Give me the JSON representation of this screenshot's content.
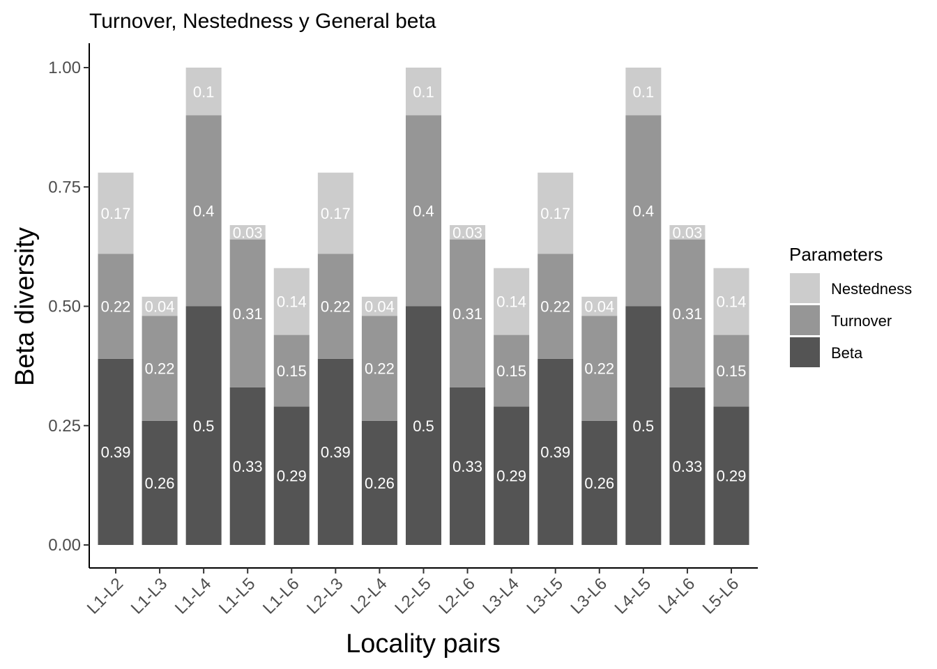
{
  "chart_data": {
    "type": "bar",
    "stacked": true,
    "title": "Turnover, Nestedness y General beta",
    "xlabel": "Locality pairs",
    "ylabel": "Beta diversity",
    "ylim": [
      0,
      1.05
    ],
    "yticks": [
      "0.00",
      "0.25",
      "0.50",
      "0.75",
      "1.00"
    ],
    "ytick_values": [
      0,
      0.25,
      0.5,
      0.75,
      1.0
    ],
    "categories": [
      "L1-L2",
      "L1-L3",
      "L1-L4",
      "L1-L5",
      "L1-L6",
      "L2-L3",
      "L2-L4",
      "L2-L5",
      "L2-L6",
      "L3-L4",
      "L3-L5",
      "L3-L6",
      "L4-L5",
      "L4-L6",
      "L5-L6"
    ],
    "series": [
      {
        "name": "Beta",
        "color": "#545454",
        "values": [
          0.39,
          0.26,
          0.5,
          0.33,
          0.29,
          0.39,
          0.26,
          0.5,
          0.33,
          0.29,
          0.39,
          0.26,
          0.5,
          0.33,
          0.29
        ]
      },
      {
        "name": "Turnover",
        "color": "#969696",
        "values": [
          0.22,
          0.22,
          0.4,
          0.31,
          0.15,
          0.22,
          0.22,
          0.4,
          0.31,
          0.15,
          0.22,
          0.22,
          0.4,
          0.31,
          0.15
        ]
      },
      {
        "name": "Nestedness",
        "color": "#cccccc",
        "values": [
          0.17,
          0.04,
          0.1,
          0.03,
          0.14,
          0.17,
          0.04,
          0.1,
          0.03,
          0.14,
          0.17,
          0.04,
          0.1,
          0.03,
          0.14
        ]
      }
    ],
    "legend": {
      "title": "Parameters",
      "placement": "right",
      "order": [
        "Nestedness",
        "Turnover",
        "Beta"
      ]
    },
    "grid": false
  }
}
